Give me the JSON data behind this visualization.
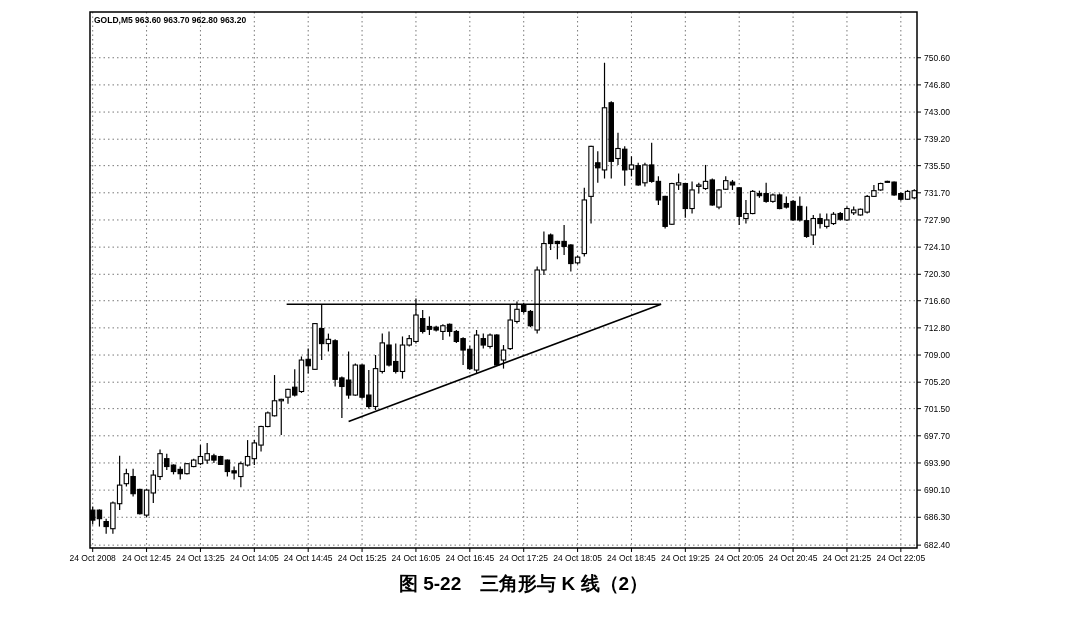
{
  "chart_data": {
    "type": "candlestick",
    "title": "图 5-22　三角形与 K 线（2）",
    "annotations": [
      "GOLD,M5 963.60 963.70 962.80 963.20"
    ],
    "color": "#000000",
    "grid": true,
    "x": [
      "2008-10-24T12:05",
      "2008-10-24T12:10",
      "2008-10-24T12:15",
      "2008-10-24T12:20",
      "2008-10-24T12:25",
      "2008-10-24T12:30",
      "2008-10-24T12:35",
      "2008-10-24T12:40",
      "2008-10-24T12:45",
      "2008-10-24T12:50",
      "2008-10-24T12:55",
      "2008-10-24T13:00",
      "2008-10-24T13:05",
      "2008-10-24T13:10",
      "2008-10-24T13:15",
      "2008-10-24T13:20",
      "2008-10-24T13:25",
      "2008-10-24T13:30",
      "2008-10-24T13:35",
      "2008-10-24T13:40",
      "2008-10-24T13:45",
      "2008-10-24T13:50",
      "2008-10-24T13:55",
      "2008-10-24T14:00",
      "2008-10-24T14:05",
      "2008-10-24T14:10",
      "2008-10-24T14:15",
      "2008-10-24T14:20",
      "2008-10-24T14:25",
      "2008-10-24T14:30",
      "2008-10-24T14:35",
      "2008-10-24T14:40",
      "2008-10-24T14:45",
      "2008-10-24T14:50",
      "2008-10-24T14:55",
      "2008-10-24T15:00",
      "2008-10-24T15:05",
      "2008-10-24T15:10",
      "2008-10-24T15:15",
      "2008-10-24T15:20",
      "2008-10-24T15:25",
      "2008-10-24T15:30",
      "2008-10-24T15:35",
      "2008-10-24T15:40",
      "2008-10-24T15:45",
      "2008-10-24T15:50",
      "2008-10-24T15:55",
      "2008-10-24T16:00",
      "2008-10-24T16:05",
      "2008-10-24T16:10",
      "2008-10-24T16:15",
      "2008-10-24T16:20",
      "2008-10-24T16:25",
      "2008-10-24T16:30",
      "2008-10-24T16:35",
      "2008-10-24T16:40",
      "2008-10-24T16:45",
      "2008-10-24T16:50",
      "2008-10-24T16:55",
      "2008-10-24T17:00",
      "2008-10-24T17:05",
      "2008-10-24T17:10",
      "2008-10-24T17:15",
      "2008-10-24T17:20",
      "2008-10-24T17:25",
      "2008-10-24T17:30",
      "2008-10-24T17:35",
      "2008-10-24T17:40",
      "2008-10-24T17:45",
      "2008-10-24T17:50",
      "2008-10-24T17:55",
      "2008-10-24T18:00",
      "2008-10-24T18:05",
      "2008-10-24T18:10",
      "2008-10-24T18:15",
      "2008-10-24T18:20",
      "2008-10-24T18:25",
      "2008-10-24T18:30",
      "2008-10-24T18:35",
      "2008-10-24T18:40",
      "2008-10-24T18:45",
      "2008-10-24T18:50",
      "2008-10-24T18:55",
      "2008-10-24T19:00",
      "2008-10-24T19:05",
      "2008-10-24T19:10",
      "2008-10-24T19:15",
      "2008-10-24T19:20",
      "2008-10-24T19:25",
      "2008-10-24T19:30",
      "2008-10-24T19:35",
      "2008-10-24T19:40",
      "2008-10-24T19:45",
      "2008-10-24T19:50",
      "2008-10-24T19:55",
      "2008-10-24T20:00",
      "2008-10-24T20:05",
      "2008-10-24T20:10",
      "2008-10-24T20:15",
      "2008-10-24T20:20",
      "2008-10-24T20:25",
      "2008-10-24T20:30",
      "2008-10-24T20:35",
      "2008-10-24T20:40",
      "2008-10-24T20:45",
      "2008-10-24T20:50",
      "2008-10-24T20:55",
      "2008-10-24T21:00",
      "2008-10-24T21:05",
      "2008-10-24T21:10",
      "2008-10-24T21:15",
      "2008-10-24T21:20",
      "2008-10-24T21:25",
      "2008-10-24T21:30",
      "2008-10-24T21:35",
      "2008-10-24T21:40",
      "2008-10-24T21:45",
      "2008-10-24T21:50",
      "2008-10-24T21:55",
      "2008-10-24T22:00",
      "2008-10-24T22:05",
      "2008-10-24T22:10",
      "2008-10-24T22:15"
    ],
    "ohlc": [
      [
        687.3,
        687.8,
        685.3,
        685.9
      ],
      [
        687.3,
        687.4,
        685.0,
        686.1
      ],
      [
        685.7,
        686.1,
        684.0,
        685.0
      ],
      [
        684.7,
        688.5,
        684.0,
        688.3
      ],
      [
        688.2,
        694.9,
        687.3,
        690.8
      ],
      [
        691.0,
        693.1,
        690.6,
        692.4
      ],
      [
        692.0,
        693.1,
        689.2,
        689.6
      ],
      [
        690.2,
        690.3,
        686.7,
        686.8
      ],
      [
        686.6,
        690.3,
        686.3,
        690.1
      ],
      [
        689.7,
        692.9,
        688.3,
        692.2
      ],
      [
        692.0,
        695.8,
        691.5,
        695.2
      ],
      [
        694.5,
        695.2,
        692.9,
        693.4
      ],
      [
        693.6,
        693.7,
        692.3,
        692.7
      ],
      [
        693.0,
        693.4,
        691.6,
        692.4
      ],
      [
        692.4,
        693.9,
        692.3,
        693.8
      ],
      [
        693.4,
        694.5,
        693.3,
        694.3
      ],
      [
        693.8,
        696.4,
        693.6,
        694.8
      ],
      [
        694.3,
        696.7,
        693.8,
        695.2
      ],
      [
        694.9,
        695.2,
        693.9,
        694.3
      ],
      [
        694.8,
        694.9,
        693.6,
        693.7
      ],
      [
        694.3,
        694.4,
        692.0,
        692.7
      ],
      [
        692.8,
        693.4,
        691.6,
        692.5
      ],
      [
        692.0,
        694.1,
        690.5,
        693.8
      ],
      [
        693.6,
        697.1,
        693.4,
        694.8
      ],
      [
        694.5,
        697.1,
        693.6,
        696.7
      ],
      [
        696.4,
        699.1,
        695.5,
        699.0
      ],
      [
        699.0,
        701.1,
        698.9,
        700.9
      ],
      [
        700.5,
        706.2,
        700.4,
        702.6
      ],
      [
        702.6,
        702.9,
        697.8,
        702.8
      ],
      [
        703.1,
        704.3,
        702.2,
        704.2
      ],
      [
        704.5,
        707.0,
        703.2,
        703.4
      ],
      [
        703.9,
        708.8,
        703.7,
        708.3
      ],
      [
        708.4,
        709.9,
        706.4,
        707.5
      ],
      [
        707.0,
        713.5,
        706.9,
        713.4
      ],
      [
        712.7,
        716.0,
        708.3,
        710.6
      ],
      [
        710.6,
        712.0,
        709.5,
        711.2
      ],
      [
        711.0,
        711.2,
        704.6,
        705.6
      ],
      [
        705.8,
        706.0,
        700.2,
        704.6
      ],
      [
        705.5,
        709.5,
        702.9,
        703.4
      ],
      [
        703.4,
        707.8,
        703.3,
        707.6
      ],
      [
        707.6,
        707.7,
        702.9,
        703.1
      ],
      [
        703.4,
        706.9,
        701.5,
        701.8
      ],
      [
        701.8,
        709.0,
        701.3,
        707.1
      ],
      [
        706.7,
        712.0,
        706.4,
        710.7
      ],
      [
        710.4,
        712.3,
        707.4,
        707.6
      ],
      [
        708.1,
        710.6,
        706.4,
        706.7
      ],
      [
        706.7,
        711.6,
        705.7,
        710.4
      ],
      [
        710.4,
        711.8,
        710.2,
        711.3
      ],
      [
        710.9,
        716.9,
        710.6,
        714.6
      ],
      [
        714.1,
        715.3,
        712.0,
        712.3
      ],
      [
        713.0,
        714.4,
        711.8,
        712.6
      ],
      [
        712.9,
        713.1,
        712.3,
        712.5
      ],
      [
        712.3,
        713.3,
        711.1,
        713.1
      ],
      [
        713.3,
        713.4,
        711.6,
        712.3
      ],
      [
        712.3,
        712.5,
        710.7,
        710.9
      ],
      [
        711.3,
        711.5,
        707.6,
        709.7
      ],
      [
        709.8,
        710.3,
        706.9,
        707.1
      ],
      [
        706.9,
        712.5,
        706.5,
        711.8
      ],
      [
        711.3,
        712.0,
        709.9,
        710.4
      ],
      [
        710.2,
        712.0,
        709.9,
        711.8
      ],
      [
        711.8,
        711.9,
        707.5,
        707.6
      ],
      [
        708.3,
        710.4,
        707.1,
        709.7
      ],
      [
        709.9,
        716.0,
        709.7,
        713.9
      ],
      [
        713.7,
        716.5,
        713.4,
        715.4
      ],
      [
        716.0,
        716.3,
        714.8,
        715.1
      ],
      [
        715.1,
        715.3,
        712.9,
        713.1
      ],
      [
        712.5,
        721.4,
        712.0,
        720.9
      ],
      [
        720.9,
        726.3,
        720.2,
        724.6
      ],
      [
        725.8,
        726.0,
        723.7,
        724.6
      ],
      [
        724.9,
        725.0,
        722.4,
        724.6
      ],
      [
        724.9,
        727.2,
        723.0,
        724.2
      ],
      [
        724.4,
        724.5,
        720.7,
        721.8
      ],
      [
        721.9,
        722.9,
        721.7,
        722.7
      ],
      [
        723.2,
        732.4,
        722.8,
        730.7
      ],
      [
        731.2,
        738.3,
        727.4,
        738.2
      ],
      [
        735.9,
        737.5,
        733.1,
        735.2
      ],
      [
        734.9,
        749.9,
        733.7,
        743.6
      ],
      [
        744.3,
        744.5,
        733.7,
        736.1
      ],
      [
        736.5,
        740.1,
        735.6,
        737.9
      ],
      [
        737.8,
        738.2,
        732.7,
        734.9
      ],
      [
        735.0,
        736.8,
        734.0,
        735.6
      ],
      [
        735.5,
        735.9,
        732.7,
        732.8
      ],
      [
        733.1,
        735.9,
        732.6,
        735.6
      ],
      [
        735.6,
        738.7,
        733.1,
        733.3
      ],
      [
        733.3,
        734.0,
        730.0,
        730.7
      ],
      [
        731.2,
        731.3,
        726.7,
        727.0
      ],
      [
        727.3,
        733.1,
        727.2,
        733.0
      ],
      [
        732.8,
        734.4,
        732.1,
        733.1
      ],
      [
        733.0,
        733.1,
        728.2,
        729.5
      ],
      [
        729.5,
        733.3,
        728.8,
        732.1
      ],
      [
        732.6,
        733.1,
        731.6,
        732.8
      ],
      [
        732.3,
        735.6,
        732.1,
        733.3
      ],
      [
        733.5,
        733.7,
        729.9,
        730.0
      ],
      [
        729.7,
        732.2,
        729.4,
        732.1
      ],
      [
        732.2,
        734.0,
        732.1,
        733.4
      ],
      [
        733.2,
        733.5,
        732.1,
        732.8
      ],
      [
        732.4,
        732.5,
        727.2,
        728.4
      ],
      [
        728.1,
        730.7,
        727.4,
        728.8
      ],
      [
        728.8,
        732.1,
        728.7,
        731.9
      ],
      [
        731.6,
        732.0,
        731.0,
        731.3
      ],
      [
        731.6,
        733.1,
        730.3,
        730.5
      ],
      [
        730.5,
        731.6,
        730.3,
        731.4
      ],
      [
        731.4,
        731.6,
        729.4,
        729.5
      ],
      [
        730.2,
        731.2,
        729.5,
        729.7
      ],
      [
        730.5,
        730.7,
        727.8,
        727.9
      ],
      [
        729.8,
        731.2,
        727.7,
        727.9
      ],
      [
        727.8,
        729.8,
        725.4,
        725.6
      ],
      [
        725.8,
        728.6,
        724.4,
        728.1
      ],
      [
        728.1,
        728.8,
        726.7,
        727.4
      ],
      [
        727.0,
        728.8,
        726.7,
        727.9
      ],
      [
        727.4,
        729.0,
        727.2,
        728.7
      ],
      [
        728.8,
        729.0,
        727.8,
        728.0
      ],
      [
        727.9,
        729.8,
        727.8,
        729.5
      ],
      [
        728.9,
        729.8,
        728.6,
        729.3
      ],
      [
        728.6,
        729.5,
        728.5,
        729.4
      ],
      [
        729.0,
        731.4,
        728.8,
        731.2
      ],
      [
        731.2,
        732.8,
        731.1,
        732.0
      ],
      [
        732.1,
        733.1,
        732.0,
        733.0
      ],
      [
        733.2,
        733.4,
        733.1,
        733.3
      ],
      [
        733.2,
        733.3,
        731.3,
        731.4
      ],
      [
        731.6,
        731.7,
        730.6,
        730.8
      ],
      [
        730.8,
        732.1,
        730.7,
        731.9
      ],
      [
        731.0,
        732.2,
        730.8,
        732.0
      ]
    ],
    "series": [
      {
        "type": "line",
        "color": "#000000",
        "x": [
          "2008-10-24T14:29",
          "2008-10-24T19:07"
        ],
        "values": [
          716.1,
          716.1
        ]
      },
      {
        "type": "line",
        "color": "#000000",
        "x": [
          "2008-10-24T15:15",
          "2008-10-24T19:07"
        ],
        "values": [
          699.7,
          716.1
        ]
      }
    ],
    "xlim": [
      "2008-10-24T12:03",
      "2008-10-24T22:17"
    ],
    "xticks": [
      {
        "value": "2008-10-24T12:05",
        "label": "24 Oct 2008"
      },
      {
        "value": "2008-10-24T12:45",
        "label": "24 Oct 12:45"
      },
      {
        "value": "2008-10-24T13:25",
        "label": "24 Oct 13:25"
      },
      {
        "value": "2008-10-24T14:05",
        "label": "24 Oct 14:05"
      },
      {
        "value": "2008-10-24T14:45",
        "label": "24 Oct 14:45"
      },
      {
        "value": "2008-10-24T15:25",
        "label": "24 Oct 15:25"
      },
      {
        "value": "2008-10-24T16:05",
        "label": "24 Oct 16:05"
      },
      {
        "value": "2008-10-24T16:45",
        "label": "24 Oct 16:45"
      },
      {
        "value": "2008-10-24T17:25",
        "label": "24 Oct 17:25"
      },
      {
        "value": "2008-10-24T18:05",
        "label": "24 Oct 18:05"
      },
      {
        "value": "2008-10-24T18:45",
        "label": "24 Oct 18:45"
      },
      {
        "value": "2008-10-24T19:25",
        "label": "24 Oct 19:25"
      },
      {
        "value": "2008-10-24T20:05",
        "label": "24 Oct 20:05"
      },
      {
        "value": "2008-10-24T20:45",
        "label": "24 Oct 20:45"
      },
      {
        "value": "2008-10-24T21:25",
        "label": "24 Oct 21:25"
      },
      {
        "value": "2008-10-24T22:05",
        "label": "24 Oct 22:05"
      }
    ],
    "ylim": [
      682.0,
      757.0
    ],
    "yticks": [
      {
        "value": 682.4,
        "label": "682.40"
      },
      {
        "value": 686.3,
        "label": "686.30"
      },
      {
        "value": 690.1,
        "label": "690.10"
      },
      {
        "value": 693.9,
        "label": "693.90"
      },
      {
        "value": 697.7,
        "label": "697.70"
      },
      {
        "value": 701.5,
        "label": "701.50"
      },
      {
        "value": 705.2,
        "label": "705.20"
      },
      {
        "value": 709.0,
        "label": "709.00"
      },
      {
        "value": 712.8,
        "label": "712.80"
      },
      {
        "value": 716.6,
        "label": "716.60"
      },
      {
        "value": 720.3,
        "label": "720.30"
      },
      {
        "value": 724.1,
        "label": "724.10"
      },
      {
        "value": 727.9,
        "label": "727.90"
      },
      {
        "value": 731.7,
        "label": "731.70"
      },
      {
        "value": 735.5,
        "label": "735.50"
      },
      {
        "value": 739.2,
        "label": "739.20"
      },
      {
        "value": 743.0,
        "label": "743.00"
      },
      {
        "value": 746.8,
        "label": "746.80"
      },
      {
        "value": 750.6,
        "label": "750.60"
      }
    ]
  }
}
